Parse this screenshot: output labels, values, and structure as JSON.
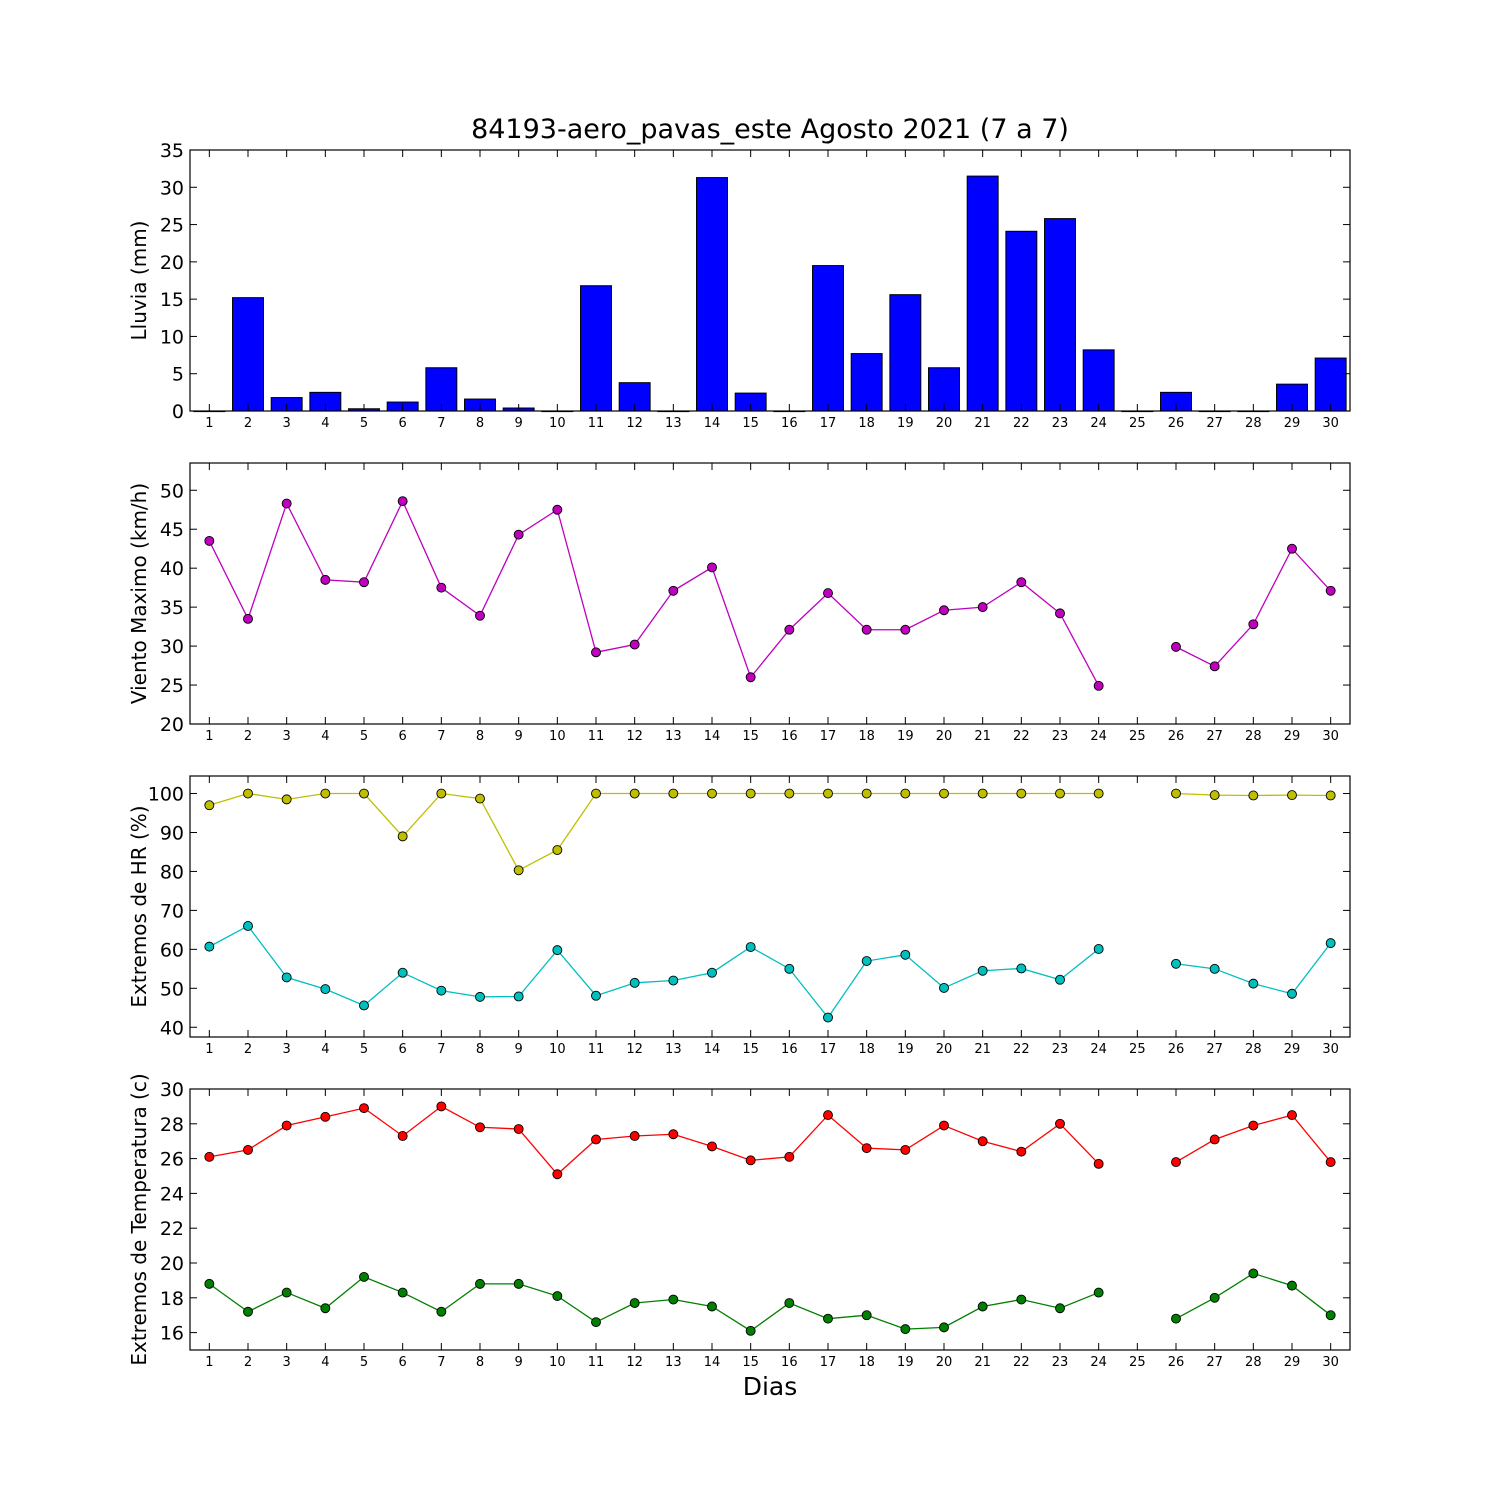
{
  "chart_data": {
    "title": "84193-aero_pavas_este Agosto 2021  (7 a 7)",
    "xlabel": "Dias",
    "days": [
      1,
      2,
      3,
      4,
      5,
      6,
      7,
      8,
      9,
      10,
      11,
      12,
      13,
      14,
      15,
      16,
      17,
      18,
      19,
      20,
      21,
      22,
      23,
      24,
      25,
      26,
      27,
      28,
      29,
      30
    ],
    "panels": [
      {
        "type": "bar",
        "ylabel": "Lluvia (mm)",
        "ylim": [
          0,
          35
        ],
        "yticks": [
          0,
          5,
          10,
          15,
          20,
          25,
          30,
          35
        ],
        "series": [
          {
            "color": "#0000ff",
            "values": [
              0,
              15.2,
              1.8,
              2.5,
              0.3,
              1.2,
              5.8,
              1.6,
              0.4,
              0,
              16.8,
              3.8,
              0,
              31.3,
              2.4,
              0,
              19.5,
              7.7,
              15.6,
              5.8,
              31.5,
              24.1,
              25.8,
              8.2,
              0,
              2.5,
              0,
              0,
              3.6,
              7.1
            ]
          }
        ]
      },
      {
        "type": "line",
        "ylabel": "Viento Maximo (km/h)",
        "ylim": [
          20,
          53.5
        ],
        "yticks": [
          20,
          25,
          30,
          35,
          40,
          45,
          50
        ],
        "series": [
          {
            "color": "#bf00bf",
            "values": [
              43.5,
              33.5,
              48.3,
              38.5,
              38.2,
              48.6,
              37.5,
              33.9,
              44.3,
              47.5,
              29.2,
              30.2,
              37.1,
              40.1,
              26.0,
              32.1,
              36.8,
              32.1,
              32.1,
              34.6,
              35.0,
              38.2,
              34.2,
              24.9,
              null,
              29.9,
              27.4,
              32.8,
              42.5,
              37.1
            ]
          }
        ]
      },
      {
        "type": "line",
        "ylabel": "Extremos de HR (%)",
        "ylim": [
          37.5,
          104.5
        ],
        "yticks": [
          40,
          50,
          60,
          70,
          80,
          90,
          100
        ],
        "series": [
          {
            "color": "#bfbf00",
            "values": [
              97.0,
              100,
              98.5,
              100,
              100,
              89.0,
              100,
              98.7,
              80.3,
              85.5,
              100,
              100,
              100,
              100,
              100,
              100,
              100,
              100,
              100,
              100,
              100,
              100,
              100,
              100,
              null,
              100,
              99.6,
              99.5,
              99.6,
              99.5
            ]
          },
          {
            "color": "#00bfbf",
            "values": [
              60.7,
              66.0,
              52.8,
              49.8,
              45.6,
              54.0,
              49.4,
              47.8,
              47.9,
              59.8,
              48.1,
              51.4,
              52.0,
              54.0,
              60.6,
              55.0,
              42.5,
              57.0,
              58.6,
              50.1,
              54.5,
              55.1,
              52.2,
              60.1,
              null,
              56.3,
              55.0,
              51.2,
              48.6,
              61.6
            ]
          }
        ]
      },
      {
        "type": "line",
        "ylabel": "Extremos de Temperatura (c)",
        "ylim": [
          15,
          30
        ],
        "yticks": [
          16,
          18,
          20,
          22,
          24,
          26,
          28,
          30
        ],
        "series": [
          {
            "color": "#ff0000",
            "values": [
              26.1,
              26.5,
              27.9,
              28.4,
              28.9,
              27.3,
              29.0,
              27.8,
              27.7,
              25.1,
              27.1,
              27.3,
              27.4,
              26.7,
              25.9,
              26.1,
              28.5,
              26.6,
              26.5,
              27.9,
              27.0,
              26.4,
              28.0,
              25.7,
              null,
              25.8,
              27.1,
              27.9,
              28.5,
              25.8
            ]
          },
          {
            "color": "#007f00",
            "values": [
              18.8,
              17.2,
              18.3,
              17.4,
              19.2,
              18.3,
              17.2,
              18.8,
              18.8,
              18.1,
              16.6,
              17.7,
              17.9,
              17.5,
              16.1,
              17.7,
              16.8,
              17.0,
              16.2,
              16.3,
              17.5,
              17.9,
              17.4,
              18.3,
              null,
              16.8,
              18.0,
              19.4,
              18.7,
              17.0
            ]
          }
        ]
      }
    ]
  }
}
